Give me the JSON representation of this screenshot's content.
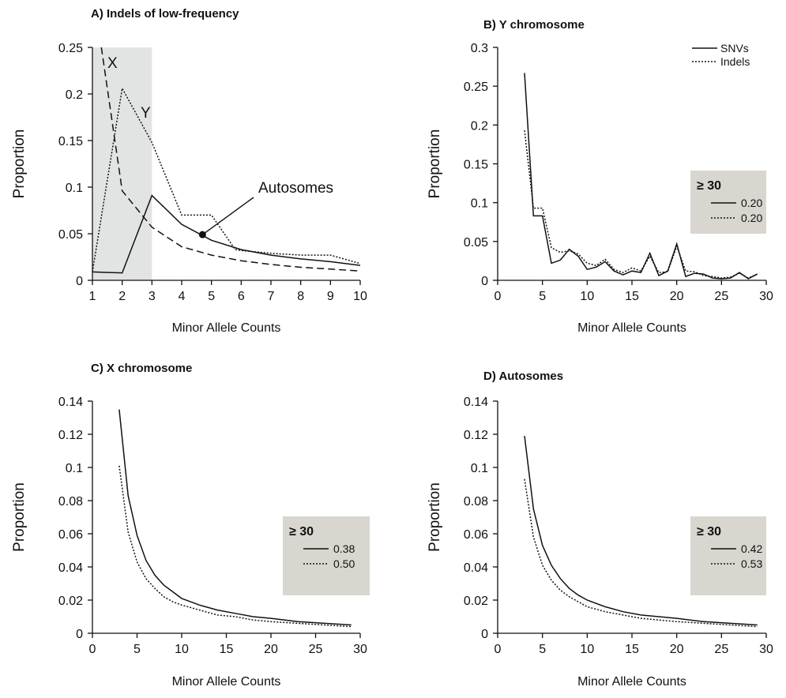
{
  "chart_data": [
    {
      "panel": "A",
      "type": "line",
      "title": "A) Indels of low-frequency",
      "xlabel": "Minor Allele Counts",
      "ylabel": "Proportion",
      "xlim": [
        1,
        10
      ],
      "ylim": [
        0,
        0.25
      ],
      "xticks": [
        1,
        2,
        3,
        4,
        5,
        6,
        7,
        8,
        9,
        10
      ],
      "yticks": [
        0,
        0.05,
        0.1,
        0.15,
        0.2,
        0.25
      ],
      "ytick_labels": [
        "0",
        "0.05",
        "0.1",
        "0.15",
        "0.2",
        "0.25"
      ],
      "shaded_region": [
        1,
        3
      ],
      "series": [
        {
          "name": "Autosomes",
          "style": "solid",
          "x": [
            1,
            2,
            3,
            4,
            5,
            6,
            7,
            8,
            9,
            10
          ],
          "y": [
            0.009,
            0.008,
            0.091,
            0.06,
            0.043,
            0.033,
            0.027,
            0.023,
            0.02,
            0.016
          ]
        },
        {
          "name": "X",
          "style": "dashed",
          "x": [
            1.3,
            2,
            3,
            4,
            5,
            6,
            7,
            8,
            9,
            10
          ],
          "y": [
            0.25,
            0.096,
            0.057,
            0.036,
            0.027,
            0.021,
            0.017,
            0.014,
            0.012,
            0.01
          ]
        },
        {
          "name": "Y",
          "style": "dotted",
          "x": [
            1,
            2,
            3,
            4,
            5,
            5.8,
            6,
            7,
            8,
            9,
            10
          ],
          "y": [
            0.009,
            0.206,
            0.148,
            0.07,
            0.07,
            0.033,
            0.032,
            0.029,
            0.027,
            0.027,
            0.018
          ]
        }
      ],
      "annotations": {
        "x_label": "X",
        "y_label": "Y",
        "autosomes_label": "Autosomes"
      },
      "marker": {
        "x": 4.7,
        "y": 0.049
      }
    },
    {
      "panel": "B",
      "type": "line",
      "title": "B) Y chromosome",
      "xlabel": "Minor Allele Counts",
      "ylabel": "Proportion",
      "xlim": [
        0,
        30
      ],
      "ylim": [
        0,
        0.3
      ],
      "xticks": [
        0,
        5,
        10,
        15,
        20,
        25,
        30
      ],
      "yticks": [
        0,
        0.05,
        0.1,
        0.15,
        0.2,
        0.25,
        0.3
      ],
      "ytick_labels": [
        "0",
        "0.05",
        "0.1",
        "0.15",
        "0.2",
        "0.25",
        "0.3"
      ],
      "legend": {
        "position": "top-right",
        "entries": [
          "SNVs",
          "Indels"
        ]
      },
      "series": [
        {
          "name": "SNVs",
          "style": "solid",
          "x": [
            3,
            4,
            5,
            6,
            7,
            8,
            9,
            10,
            11,
            12,
            13,
            14,
            15,
            16,
            17,
            18,
            19,
            20,
            21,
            22,
            23,
            24,
            25,
            26,
            27,
            28,
            29
          ],
          "y": [
            0.267,
            0.083,
            0.083,
            0.022,
            0.026,
            0.04,
            0.031,
            0.014,
            0.017,
            0.024,
            0.012,
            0.007,
            0.012,
            0.01,
            0.035,
            0.006,
            0.012,
            0.047,
            0.005,
            0.009,
            0.008,
            0.003,
            0.002,
            0.003,
            0.01,
            0.002,
            0.008
          ]
        },
        {
          "name": "Indels",
          "style": "dotted",
          "x": [
            3,
            4,
            5,
            6,
            7,
            8,
            9,
            10,
            11,
            12,
            13,
            14,
            15,
            16,
            17,
            18,
            19,
            20,
            21,
            22,
            23,
            24,
            25,
            26,
            27,
            28,
            29
          ],
          "y": [
            0.193,
            0.093,
            0.093,
            0.042,
            0.036,
            0.038,
            0.034,
            0.022,
            0.019,
            0.027,
            0.014,
            0.01,
            0.016,
            0.012,
            0.031,
            0.01,
            0.011,
            0.044,
            0.012,
            0.011,
            0.006,
            0.005,
            0.003,
            0.004,
            0.009,
            0.003,
            0.008
          ]
        }
      ],
      "inset": {
        "title": "≥ 30",
        "values": [
          "0.20",
          "0.20"
        ]
      }
    },
    {
      "panel": "C",
      "type": "line",
      "title": "C) X chromosome",
      "xlabel": "Minor Allele Counts",
      "ylabel": "Proportion",
      "xlim": [
        0,
        30
      ],
      "ylim": [
        0,
        0.14
      ],
      "xticks": [
        0,
        5,
        10,
        15,
        20,
        25,
        30
      ],
      "yticks": [
        0,
        0.02,
        0.04,
        0.06,
        0.08,
        0.1,
        0.12,
        0.14
      ],
      "ytick_labels": [
        "0",
        "0.02",
        "0.04",
        "0.06",
        "0.08",
        "0.1",
        "0.12",
        "0.14"
      ],
      "series": [
        {
          "name": "SNVs",
          "style": "solid",
          "x": [
            3,
            4,
            5,
            6,
            7,
            8,
            9,
            10,
            12,
            14,
            16,
            18,
            20,
            23,
            26,
            29
          ],
          "y": [
            0.135,
            0.083,
            0.059,
            0.044,
            0.035,
            0.029,
            0.025,
            0.021,
            0.017,
            0.014,
            0.012,
            0.01,
            0.009,
            0.007,
            0.006,
            0.005
          ]
        },
        {
          "name": "Indels",
          "style": "dotted",
          "x": [
            3,
            4,
            5,
            6,
            7,
            8,
            9,
            10,
            12,
            14,
            16,
            18,
            20,
            23,
            26,
            29
          ],
          "y": [
            0.101,
            0.061,
            0.043,
            0.033,
            0.027,
            0.022,
            0.019,
            0.017,
            0.014,
            0.011,
            0.01,
            0.008,
            0.007,
            0.006,
            0.005,
            0.004
          ]
        }
      ],
      "inset": {
        "title": "≥ 30",
        "values": [
          "0.38",
          "0.50"
        ]
      }
    },
    {
      "panel": "D",
      "type": "line",
      "title": "D) Autosomes",
      "xlabel": "Minor Allele Counts",
      "ylabel": "Proportion",
      "xlim": [
        0,
        30
      ],
      "ylim": [
        0,
        0.14
      ],
      "xticks": [
        0,
        5,
        10,
        15,
        20,
        25,
        30
      ],
      "yticks": [
        0,
        0.02,
        0.04,
        0.06,
        0.08,
        0.1,
        0.12,
        0.14
      ],
      "ytick_labels": [
        "0",
        "0.02",
        "0.04",
        "0.06",
        "0.08",
        "0.1",
        "0.12",
        "0.14"
      ],
      "series": [
        {
          "name": "SNVs",
          "style": "solid",
          "x": [
            3,
            4,
            5,
            6,
            7,
            8,
            9,
            10,
            12,
            14,
            16,
            18,
            20,
            23,
            26,
            29
          ],
          "y": [
            0.119,
            0.075,
            0.053,
            0.041,
            0.033,
            0.027,
            0.023,
            0.02,
            0.016,
            0.013,
            0.011,
            0.01,
            0.009,
            0.007,
            0.006,
            0.005
          ]
        },
        {
          "name": "Indels",
          "style": "dotted",
          "x": [
            3,
            4,
            5,
            6,
            7,
            8,
            9,
            10,
            12,
            14,
            16,
            18,
            20,
            23,
            26,
            29
          ],
          "y": [
            0.093,
            0.058,
            0.041,
            0.032,
            0.026,
            0.022,
            0.019,
            0.016,
            0.013,
            0.011,
            0.009,
            0.008,
            0.007,
            0.006,
            0.005,
            0.004
          ]
        }
      ],
      "inset": {
        "title": "≥ 30",
        "values": [
          "0.42",
          "0.53"
        ]
      }
    }
  ]
}
